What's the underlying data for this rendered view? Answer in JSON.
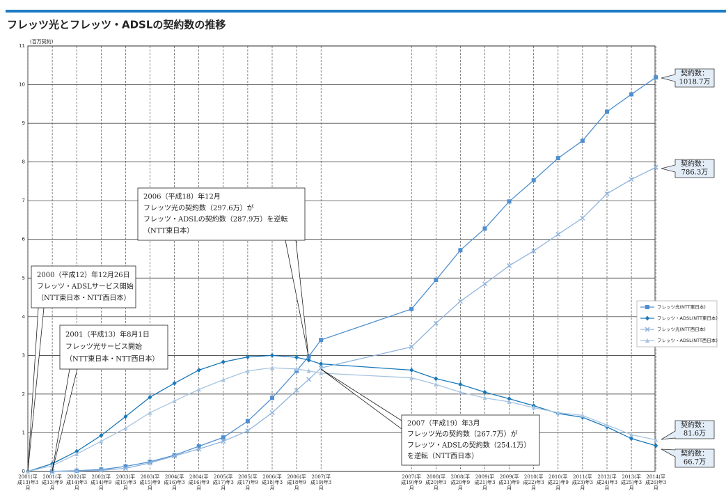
{
  "chart_data": {
    "type": "line",
    "title": "フレッツ光とフレッツ・ADSLの契約数の推移",
    "y_label": "(百万契約)",
    "categories": [
      "2001(平成13)年3月",
      "2001(平成13)年9月",
      "2002(平成14)年3月",
      "2002(平成14)年9月",
      "2003(平成15)年3月",
      "2003(平成15)年9月",
      "2004(平成16)年3月",
      "2004(平成16)年9月",
      "2005(平成17)年3月",
      "2005(平成17)年9月",
      "2006(平成18)年3月",
      "2006(平成18年9月",
      null,
      "2007(平成19)年3月",
      "2007(平成19)年9月",
      "2008(平成20)年3月",
      "2008(平成20年9月",
      "2009(平成21)年3月",
      "2009(平成21)年9月",
      "2010(平成22)年3月",
      "2010(平成22)年9月",
      "2011(平成23)年3月",
      "2012(平成24)年3月",
      "2013(平成25)年3月",
      "2014(平成26)年3月"
    ],
    "series": [
      {
        "name": "フレッツ光(NTT東日本)",
        "color": "#4f8fd0",
        "marker": "square",
        "values": [
          null,
          0.005,
          0.02,
          0.05,
          0.13,
          0.25,
          0.42,
          0.65,
          0.88,
          1.3,
          1.9,
          2.6,
          2.976,
          3.4,
          4.2,
          4.95,
          5.72,
          6.28,
          6.98,
          7.53,
          8.1,
          8.55,
          9.3,
          9.75,
          10.187
        ]
      },
      {
        "name": "フレッツ・ADSL(NTT東日本)",
        "color": "#1a78b8",
        "marker": "diamond",
        "values": [
          0,
          0.2,
          0.52,
          0.93,
          1.42,
          1.92,
          2.28,
          2.62,
          2.83,
          2.96,
          3.0,
          2.95,
          2.879,
          2.78,
          2.62,
          2.4,
          2.25,
          2.05,
          1.88,
          1.7,
          1.5,
          1.4,
          1.15,
          0.85,
          0.667
        ]
      },
      {
        "name": "フレッツ光(NTT西日本)",
        "color": "#8fb4dd",
        "marker": "x",
        "values": [
          null,
          0,
          0.01,
          0.03,
          0.08,
          0.22,
          0.4,
          0.58,
          0.78,
          1.05,
          1.52,
          2.1,
          2.38,
          2.677,
          3.22,
          3.83,
          4.4,
          4.85,
          5.32,
          5.7,
          6.13,
          6.55,
          7.18,
          7.55,
          7.863
        ]
      },
      {
        "name": "フレッツ・ADSL(NTT西日本)",
        "color": "#a8c4e0",
        "marker": "triangle",
        "values": [
          0,
          0.15,
          0.45,
          0.78,
          1.12,
          1.52,
          1.82,
          2.12,
          2.37,
          2.6,
          2.68,
          2.65,
          2.6,
          2.541,
          2.42,
          2.25,
          2.05,
          1.9,
          1.8,
          1.65,
          1.52,
          1.45,
          1.2,
          0.95,
          0.816
        ]
      }
    ],
    "ylim": [
      0,
      11
    ],
    "yticks": [
      0,
      1,
      2,
      3,
      4,
      5,
      6,
      7,
      8,
      9,
      10,
      11
    ],
    "grid": true,
    "legend": "right",
    "annotations": [
      [
        "2000（平成12）年12月26日",
        "フレッツ・ADSLサービス開始",
        "（NTT東日本・NTT西日本）"
      ],
      [
        "2001（平成13）年8月1日",
        "フレッツ光サービス開始",
        "（NTT東日本・NTT西日本）"
      ],
      [
        "2006（平成18）年12月",
        "フレッツ光の契約数（297.6万）が",
        "フレッツ・ADSLの契約数（287.9万）を逆転",
        "（NTT東日本）"
      ],
      [
        "2007（平成19）年3月",
        "フレッツ光の契約数（267.7万）が",
        "フレッツ・ADSLの契約数（254.1万）",
        "を逆転（NTT西日本）"
      ]
    ],
    "end_labels": [
      [
        "契約数：",
        "1018.7万"
      ],
      [
        "契約数：",
        "786.3万"
      ],
      [
        "契約数：",
        "81.6万"
      ],
      [
        "契約数：",
        "66.7万"
      ]
    ]
  }
}
